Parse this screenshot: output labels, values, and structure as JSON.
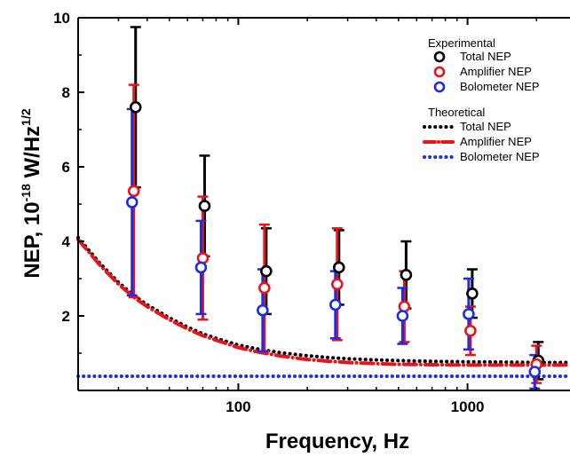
{
  "chart_data": {
    "type": "scatter",
    "title": "",
    "xlabel": "Frequency, Hz",
    "ylabel_parts": [
      "NEP, 10",
      "-18",
      " W/Hz",
      "1/2"
    ],
    "xscale": "log",
    "xlim": [
      20,
      2800
    ],
    "ylim": [
      0,
      10
    ],
    "x_ticks": [
      {
        "value": 100,
        "label": "100"
      },
      {
        "value": 1000,
        "label": "1000"
      }
    ],
    "y_ticks": [
      {
        "value": 2,
        "label": "2"
      },
      {
        "value": 4,
        "label": "4"
      },
      {
        "value": 6,
        "label": "6"
      },
      {
        "value": 8,
        "label": "8"
      },
      {
        "value": 10,
        "label": "10"
      }
    ],
    "legend": {
      "placement": "top-right",
      "group_experimental": "Experimental",
      "group_theoretical": "Theoretical"
    },
    "experimental_series": [
      {
        "name": "Total NEP",
        "color": "#000000",
        "x": [
          35,
          70,
          130,
          270,
          530,
          1030,
          2000
        ],
        "y": [
          7.6,
          4.95,
          3.2,
          3.3,
          3.1,
          2.6,
          0.8
        ],
        "err": [
          2.15,
          1.35,
          1.15,
          1.0,
          0.9,
          0.65,
          0.5
        ]
      },
      {
        "name": "Amplifier NEP",
        "color": "#e8141c",
        "x": [
          35,
          70,
          130,
          270,
          530,
          1030,
          2000
        ],
        "y": [
          5.35,
          3.55,
          2.75,
          2.85,
          2.25,
          1.6,
          0.7
        ],
        "err": [
          2.85,
          1.65,
          1.7,
          1.5,
          0.95,
          0.65,
          0.5
        ]
      },
      {
        "name": "Bolometer NEP",
        "color": "#1c2ce8",
        "x": [
          35,
          70,
          130,
          270,
          530,
          1030,
          2000
        ],
        "y": [
          5.05,
          3.3,
          2.15,
          2.3,
          2.0,
          2.05,
          0.5
        ],
        "err": [
          2.5,
          1.25,
          1.1,
          0.9,
          0.75,
          0.95,
          0.45
        ]
      }
    ],
    "theoretical_series": [
      {
        "name": "Total NEP",
        "color": "#000000",
        "style": "dotted",
        "x": [
          20,
          25,
          30,
          35,
          40,
          50,
          60,
          70,
          80,
          100,
          120,
          150,
          200,
          250,
          300,
          400,
          500,
          700,
          1000,
          1500,
          2000,
          2800
        ],
        "y": [
          4.1,
          3.4,
          2.9,
          2.55,
          2.3,
          1.95,
          1.7,
          1.52,
          1.4,
          1.22,
          1.12,
          1.02,
          0.93,
          0.88,
          0.85,
          0.82,
          0.8,
          0.78,
          0.77,
          0.76,
          0.75,
          0.75
        ]
      },
      {
        "name": "Amplifier NEP",
        "color": "#e8141c",
        "style": "dash-dot",
        "x": [
          20,
          25,
          30,
          35,
          40,
          50,
          60,
          70,
          80,
          100,
          120,
          150,
          200,
          250,
          300,
          400,
          500,
          700,
          1000,
          1500,
          2000,
          2800
        ],
        "y": [
          4.05,
          3.35,
          2.85,
          2.5,
          2.25,
          1.9,
          1.65,
          1.47,
          1.35,
          1.15,
          1.04,
          0.93,
          0.83,
          0.78,
          0.75,
          0.72,
          0.7,
          0.69,
          0.68,
          0.68,
          0.68,
          0.68
        ]
      },
      {
        "name": "Bolometer NEP",
        "color": "#1c2ce8",
        "style": "dotted",
        "x": [
          20,
          2800
        ],
        "y": [
          0.38,
          0.38
        ]
      }
    ]
  }
}
